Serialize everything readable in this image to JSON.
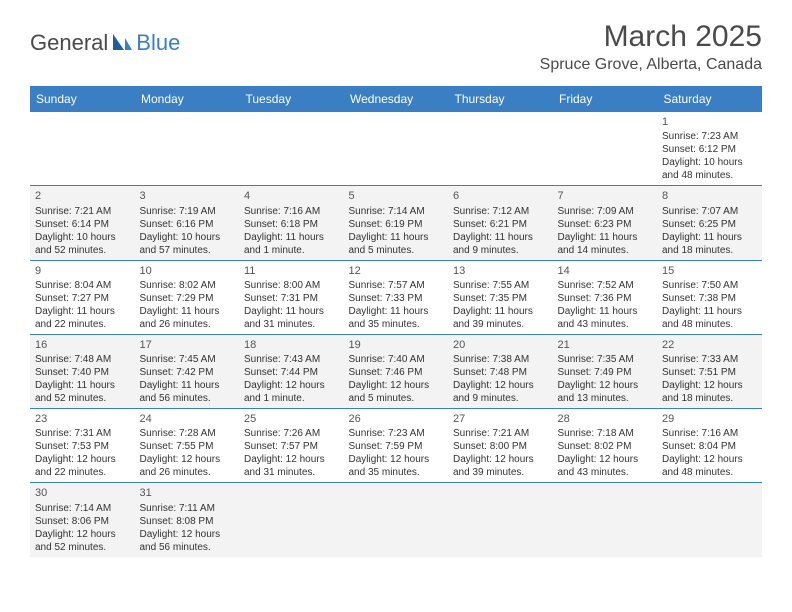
{
  "logo": {
    "part1": "General",
    "part2": "Blue"
  },
  "title": "March 2025",
  "location": "Spruce Grove, Alberta, Canada",
  "colors": {
    "header_bg": "#3a7fc4",
    "header_text": "#ffffff",
    "border": "#3a7fc4",
    "alt_row": "#f3f3f3",
    "text": "#333333",
    "logo_gray": "#4a4a4a",
    "logo_blue": "#3a7fc4"
  },
  "weekdays": [
    "Sunday",
    "Monday",
    "Tuesday",
    "Wednesday",
    "Thursday",
    "Friday",
    "Saturday"
  ],
  "weeks": [
    [
      null,
      null,
      null,
      null,
      null,
      null,
      {
        "n": "1",
        "sr": "7:23 AM",
        "ss": "6:12 PM",
        "dl": "10 hours and 48 minutes."
      }
    ],
    [
      {
        "n": "2",
        "sr": "7:21 AM",
        "ss": "6:14 PM",
        "dl": "10 hours and 52 minutes."
      },
      {
        "n": "3",
        "sr": "7:19 AM",
        "ss": "6:16 PM",
        "dl": "10 hours and 57 minutes."
      },
      {
        "n": "4",
        "sr": "7:16 AM",
        "ss": "6:18 PM",
        "dl": "11 hours and 1 minute."
      },
      {
        "n": "5",
        "sr": "7:14 AM",
        "ss": "6:19 PM",
        "dl": "11 hours and 5 minutes."
      },
      {
        "n": "6",
        "sr": "7:12 AM",
        "ss": "6:21 PM",
        "dl": "11 hours and 9 minutes."
      },
      {
        "n": "7",
        "sr": "7:09 AM",
        "ss": "6:23 PM",
        "dl": "11 hours and 14 minutes."
      },
      {
        "n": "8",
        "sr": "7:07 AM",
        "ss": "6:25 PM",
        "dl": "11 hours and 18 minutes."
      }
    ],
    [
      {
        "n": "9",
        "sr": "8:04 AM",
        "ss": "7:27 PM",
        "dl": "11 hours and 22 minutes."
      },
      {
        "n": "10",
        "sr": "8:02 AM",
        "ss": "7:29 PM",
        "dl": "11 hours and 26 minutes."
      },
      {
        "n": "11",
        "sr": "8:00 AM",
        "ss": "7:31 PM",
        "dl": "11 hours and 31 minutes."
      },
      {
        "n": "12",
        "sr": "7:57 AM",
        "ss": "7:33 PM",
        "dl": "11 hours and 35 minutes."
      },
      {
        "n": "13",
        "sr": "7:55 AM",
        "ss": "7:35 PM",
        "dl": "11 hours and 39 minutes."
      },
      {
        "n": "14",
        "sr": "7:52 AM",
        "ss": "7:36 PM",
        "dl": "11 hours and 43 minutes."
      },
      {
        "n": "15",
        "sr": "7:50 AM",
        "ss": "7:38 PM",
        "dl": "11 hours and 48 minutes."
      }
    ],
    [
      {
        "n": "16",
        "sr": "7:48 AM",
        "ss": "7:40 PM",
        "dl": "11 hours and 52 minutes."
      },
      {
        "n": "17",
        "sr": "7:45 AM",
        "ss": "7:42 PM",
        "dl": "11 hours and 56 minutes."
      },
      {
        "n": "18",
        "sr": "7:43 AM",
        "ss": "7:44 PM",
        "dl": "12 hours and 1 minute."
      },
      {
        "n": "19",
        "sr": "7:40 AM",
        "ss": "7:46 PM",
        "dl": "12 hours and 5 minutes."
      },
      {
        "n": "20",
        "sr": "7:38 AM",
        "ss": "7:48 PM",
        "dl": "12 hours and 9 minutes."
      },
      {
        "n": "21",
        "sr": "7:35 AM",
        "ss": "7:49 PM",
        "dl": "12 hours and 13 minutes."
      },
      {
        "n": "22",
        "sr": "7:33 AM",
        "ss": "7:51 PM",
        "dl": "12 hours and 18 minutes."
      }
    ],
    [
      {
        "n": "23",
        "sr": "7:31 AM",
        "ss": "7:53 PM",
        "dl": "12 hours and 22 minutes."
      },
      {
        "n": "24",
        "sr": "7:28 AM",
        "ss": "7:55 PM",
        "dl": "12 hours and 26 minutes."
      },
      {
        "n": "25",
        "sr": "7:26 AM",
        "ss": "7:57 PM",
        "dl": "12 hours and 31 minutes."
      },
      {
        "n": "26",
        "sr": "7:23 AM",
        "ss": "7:59 PM",
        "dl": "12 hours and 35 minutes."
      },
      {
        "n": "27",
        "sr": "7:21 AM",
        "ss": "8:00 PM",
        "dl": "12 hours and 39 minutes."
      },
      {
        "n": "28",
        "sr": "7:18 AM",
        "ss": "8:02 PM",
        "dl": "12 hours and 43 minutes."
      },
      {
        "n": "29",
        "sr": "7:16 AM",
        "ss": "8:04 PM",
        "dl": "12 hours and 48 minutes."
      }
    ],
    [
      {
        "n": "30",
        "sr": "7:14 AM",
        "ss": "8:06 PM",
        "dl": "12 hours and 52 minutes."
      },
      {
        "n": "31",
        "sr": "7:11 AM",
        "ss": "8:08 PM",
        "dl": "12 hours and 56 minutes."
      },
      null,
      null,
      null,
      null,
      null
    ]
  ],
  "labels": {
    "sunrise": "Sunrise:",
    "sunset": "Sunset:",
    "daylight": "Daylight:"
  }
}
